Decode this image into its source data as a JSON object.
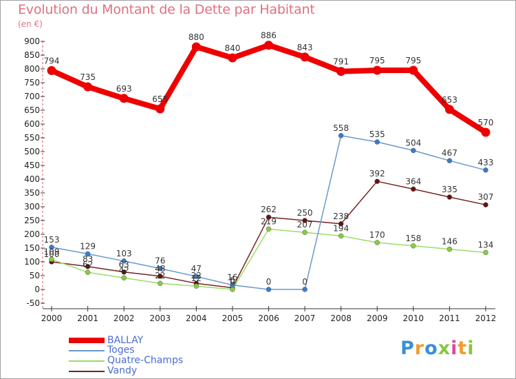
{
  "chart_data": {
    "type": "line",
    "title": "Evolution du Montant de la Dette par Habitant",
    "subtitle": "(en €)",
    "xlabel": "",
    "ylabel": "",
    "x": [
      "2000",
      "2001",
      "2002",
      "2003",
      "2004",
      "2005",
      "2006",
      "2007",
      "2008",
      "2009",
      "2010",
      "2011",
      "2012"
    ],
    "ylim": [
      -50,
      900
    ],
    "yticks": [
      -50,
      0,
      50,
      100,
      150,
      200,
      250,
      300,
      350,
      400,
      450,
      500,
      550,
      600,
      650,
      700,
      750,
      800,
      850,
      900
    ],
    "grid": false,
    "legend_position": "bottom-left",
    "series": [
      {
        "name": "BALLAY",
        "color": "#ee0000",
        "values": [
          794,
          735,
          693,
          655,
          880,
          840,
          886,
          843,
          791,
          795,
          795,
          653,
          570
        ],
        "labels": [
          "794",
          "735",
          "693",
          "655",
          "880",
          "840",
          "886",
          "843",
          "791",
          "795",
          "795",
          "653",
          "570"
        ]
      },
      {
        "name": "Toges",
        "color": "#6699cc",
        "marker_color": "#3d7cc9",
        "values": [
          153,
          129,
          103,
          76,
          47,
          16,
          0,
          0,
          558,
          535,
          504,
          467,
          433
        ],
        "labels": [
          "153",
          "129",
          "103",
          "76",
          "47",
          "16",
          "0",
          "0",
          "558",
          "535",
          "504",
          "467",
          "433"
        ]
      },
      {
        "name": "Quatre-Champs",
        "color": "#99dd66",
        "marker_color": "#88cc44",
        "values": [
          109,
          62,
          42,
          22,
          12,
          0,
          219,
          207,
          194,
          170,
          158,
          146,
          134
        ],
        "labels": [
          "109",
          "62",
          "42",
          "22",
          "12",
          "0",
          "219",
          "207",
          "194",
          "170",
          "158",
          "146",
          "134"
        ]
      },
      {
        "name": "Vandy",
        "color": "#772222",
        "marker_color": "#661111",
        "values": [
          100,
          83,
          63,
          48,
          22,
          6,
          262,
          250,
          238,
          392,
          364,
          335,
          307
        ],
        "labels": [
          "100",
          "83",
          "63",
          "48",
          "22",
          "6",
          "262",
          "250",
          "238",
          "392",
          "364",
          "335",
          "307"
        ]
      }
    ]
  },
  "logo_text": "Proxiti"
}
